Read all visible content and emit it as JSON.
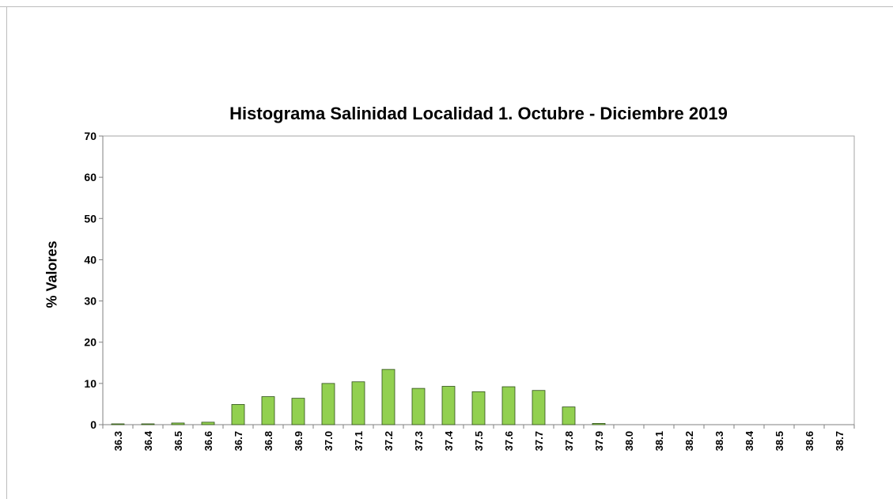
{
  "chart_data": {
    "type": "bar",
    "title": "Histograma Salinidad Localidad 1. Octubre - Diciembre 2019",
    "xlabel": "",
    "ylabel": "% Valores",
    "ylim": [
      0,
      70
    ],
    "yticks": [
      "0",
      "10",
      "20",
      "30",
      "40",
      "50",
      "60",
      "70"
    ],
    "categories": [
      "36.3",
      "36.4",
      "36.5",
      "36.6",
      "36.7",
      "36.8",
      "36.9",
      "37.0",
      "37.1",
      "37.2",
      "37.3",
      "37.4",
      "37.5",
      "37.6",
      "37.7",
      "37.8",
      "37.9",
      "38.0",
      "38.1",
      "38.2",
      "38.3",
      "38.4",
      "38.5",
      "38.6",
      "38.7"
    ],
    "values": [
      0.2,
      0.2,
      0.4,
      0.6,
      4.9,
      6.8,
      6.4,
      10.0,
      10.4,
      13.4,
      8.8,
      9.3,
      8.0,
      9.2,
      8.3,
      4.3,
      0.3,
      0,
      0,
      0,
      0,
      0,
      0,
      0,
      0
    ],
    "bar_color": "#92d050",
    "bar_edge_color": "#2f4f1a",
    "grid": false,
    "legend": "none"
  }
}
